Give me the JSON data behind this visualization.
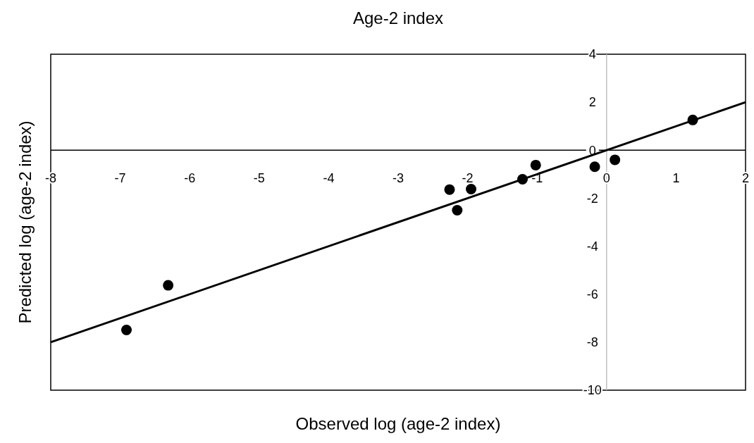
{
  "chart_data": {
    "type": "scatter",
    "title": "Age-2 index",
    "xlabel": "Observed log (age-2 index)",
    "ylabel": "Predicted log (age-2 index)",
    "xlim": [
      -8,
      2
    ],
    "xticks": [
      -8,
      -7,
      -6,
      -5,
      -4,
      -3,
      -2,
      -1,
      0,
      1,
      2
    ],
    "ylim": [
      -10,
      4
    ],
    "yticks": [
      -10,
      -8,
      -6,
      -4,
      -2,
      0,
      2,
      4
    ],
    "grid": false,
    "series": [
      {
        "marker": "circle",
        "color": "#000000",
        "x": [
          -6.91,
          -6.31,
          -2.26,
          -2.15,
          -1.95,
          -1.21,
          -1.02,
          -0.17,
          0.12,
          1.24
        ],
        "values": [
          -7.49,
          -5.63,
          -1.64,
          -2.5,
          -1.62,
          -1.21,
          -0.62,
          -0.69,
          -0.4,
          1.26
        ]
      },
      {
        "type": "line",
        "color": "#000000",
        "x": [
          -8,
          2
        ],
        "values": [
          -8,
          2
        ]
      }
    ]
  }
}
